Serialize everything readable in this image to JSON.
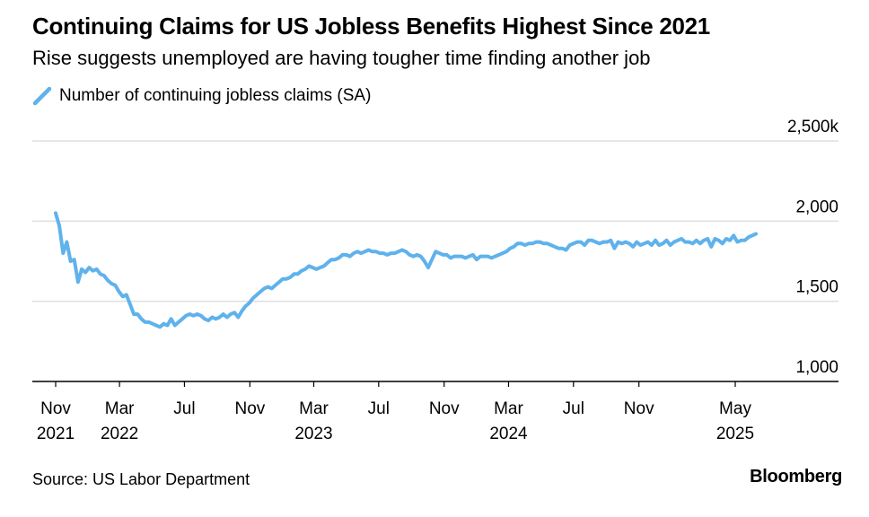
{
  "header": {
    "title": "Continuing Claims for US Jobless Benefits Highest Since 2021",
    "subtitle": "Rise suggests unemployed are having tougher time finding another job"
  },
  "footer": {
    "source": "Source: US Labor Department",
    "brand": "Bloomberg"
  },
  "chart_data": {
    "type": "line",
    "title": "Continuing Claims for US Jobless Benefits Highest Since 2021",
    "subtitle": "Rise suggests unemployed are having tougher time finding another job",
    "xlabel": "",
    "ylabel": "",
    "ylim": [
      1000,
      2500
    ],
    "y_ticks": [
      {
        "value": 1000,
        "label": "1,000"
      },
      {
        "value": 1500,
        "label": "1,500"
      },
      {
        "value": 2000,
        "label": "2,000"
      },
      {
        "value": 2500,
        "label": "2,500k"
      }
    ],
    "x_ticks": [
      {
        "date": "2021-11",
        "label": "Nov",
        "year": "2021"
      },
      {
        "date": "2022-03",
        "label": "Mar",
        "year": "2022"
      },
      {
        "date": "2022-07",
        "label": "Jul",
        "year": ""
      },
      {
        "date": "2022-11",
        "label": "Nov",
        "year": ""
      },
      {
        "date": "2023-03",
        "label": "Mar",
        "year": "2023"
      },
      {
        "date": "2023-07",
        "label": "Jul",
        "year": ""
      },
      {
        "date": "2023-11",
        "label": "Nov",
        "year": ""
      },
      {
        "date": "2024-03",
        "label": "Mar",
        "year": "2024"
      },
      {
        "date": "2024-07",
        "label": "Jul",
        "year": ""
      },
      {
        "date": "2024-11",
        "label": "Nov",
        "year": ""
      },
      {
        "date": "2025-05",
        "label": "May",
        "year": "2025"
      }
    ],
    "grid": true,
    "legend_position": "top-left",
    "color": "#5fb2ec",
    "series": [
      {
        "name": "Number of continuing jobless claims (SA)",
        "values": [
          [
            "2021-11-01",
            2050
          ],
          [
            "2021-11-08",
            1970
          ],
          [
            "2021-11-15",
            1800
          ],
          [
            "2021-11-22",
            1870
          ],
          [
            "2021-11-29",
            1750
          ],
          [
            "2021-12-06",
            1760
          ],
          [
            "2021-12-13",
            1620
          ],
          [
            "2021-12-20",
            1700
          ],
          [
            "2021-12-27",
            1680
          ],
          [
            "2022-01-03",
            1710
          ],
          [
            "2022-01-10",
            1690
          ],
          [
            "2022-01-17",
            1700
          ],
          [
            "2022-01-24",
            1670
          ],
          [
            "2022-01-31",
            1660
          ],
          [
            "2022-02-07",
            1630
          ],
          [
            "2022-02-14",
            1610
          ],
          [
            "2022-02-21",
            1600
          ],
          [
            "2022-02-28",
            1560
          ],
          [
            "2022-03-07",
            1530
          ],
          [
            "2022-03-14",
            1540
          ],
          [
            "2022-03-21",
            1480
          ],
          [
            "2022-03-28",
            1420
          ],
          [
            "2022-04-04",
            1420
          ],
          [
            "2022-04-11",
            1390
          ],
          [
            "2022-04-18",
            1370
          ],
          [
            "2022-04-25",
            1370
          ],
          [
            "2022-05-02",
            1360
          ],
          [
            "2022-05-09",
            1350
          ],
          [
            "2022-05-16",
            1340
          ],
          [
            "2022-05-23",
            1360
          ],
          [
            "2022-05-30",
            1350
          ],
          [
            "2022-06-06",
            1390
          ],
          [
            "2022-06-13",
            1350
          ],
          [
            "2022-06-20",
            1370
          ],
          [
            "2022-06-27",
            1390
          ],
          [
            "2022-07-04",
            1410
          ],
          [
            "2022-07-11",
            1420
          ],
          [
            "2022-07-18",
            1410
          ],
          [
            "2022-07-25",
            1420
          ],
          [
            "2022-08-01",
            1410
          ],
          [
            "2022-08-08",
            1390
          ],
          [
            "2022-08-15",
            1380
          ],
          [
            "2022-08-22",
            1400
          ],
          [
            "2022-08-29",
            1390
          ],
          [
            "2022-09-05",
            1400
          ],
          [
            "2022-09-12",
            1420
          ],
          [
            "2022-09-19",
            1400
          ],
          [
            "2022-09-26",
            1420
          ],
          [
            "2022-10-03",
            1430
          ],
          [
            "2022-10-10",
            1400
          ],
          [
            "2022-10-17",
            1440
          ],
          [
            "2022-10-24",
            1470
          ],
          [
            "2022-10-31",
            1490
          ],
          [
            "2022-11-07",
            1520
          ],
          [
            "2022-11-14",
            1540
          ],
          [
            "2022-11-21",
            1560
          ],
          [
            "2022-11-28",
            1580
          ],
          [
            "2022-12-05",
            1590
          ],
          [
            "2022-12-12",
            1580
          ],
          [
            "2022-12-19",
            1600
          ],
          [
            "2022-12-26",
            1620
          ],
          [
            "2023-01-02",
            1640
          ],
          [
            "2023-01-09",
            1640
          ],
          [
            "2023-01-16",
            1650
          ],
          [
            "2023-01-23",
            1670
          ],
          [
            "2023-01-30",
            1670
          ],
          [
            "2023-02-06",
            1690
          ],
          [
            "2023-02-13",
            1700
          ],
          [
            "2023-02-20",
            1720
          ],
          [
            "2023-02-27",
            1710
          ],
          [
            "2023-03-06",
            1700
          ],
          [
            "2023-03-13",
            1710
          ],
          [
            "2023-03-20",
            1720
          ],
          [
            "2023-03-27",
            1740
          ],
          [
            "2023-04-03",
            1760
          ],
          [
            "2023-04-10",
            1760
          ],
          [
            "2023-04-17",
            1770
          ],
          [
            "2023-04-24",
            1790
          ],
          [
            "2023-05-01",
            1790
          ],
          [
            "2023-05-08",
            1780
          ],
          [
            "2023-05-15",
            1800
          ],
          [
            "2023-05-22",
            1810
          ],
          [
            "2023-05-29",
            1800
          ],
          [
            "2023-06-05",
            1810
          ],
          [
            "2023-06-12",
            1820
          ],
          [
            "2023-06-19",
            1810
          ],
          [
            "2023-06-26",
            1810
          ],
          [
            "2023-07-03",
            1800
          ],
          [
            "2023-07-10",
            1800
          ],
          [
            "2023-07-17",
            1790
          ],
          [
            "2023-07-24",
            1800
          ],
          [
            "2023-07-31",
            1800
          ],
          [
            "2023-08-07",
            1810
          ],
          [
            "2023-08-14",
            1820
          ],
          [
            "2023-08-21",
            1810
          ],
          [
            "2023-08-28",
            1790
          ],
          [
            "2023-09-04",
            1780
          ],
          [
            "2023-09-11",
            1790
          ],
          [
            "2023-09-18",
            1780
          ],
          [
            "2023-09-25",
            1750
          ],
          [
            "2023-10-02",
            1710
          ],
          [
            "2023-10-09",
            1760
          ],
          [
            "2023-10-16",
            1810
          ],
          [
            "2023-10-23",
            1800
          ],
          [
            "2023-10-30",
            1790
          ],
          [
            "2023-11-06",
            1790
          ],
          [
            "2023-11-13",
            1770
          ],
          [
            "2023-11-20",
            1780
          ],
          [
            "2023-11-27",
            1780
          ],
          [
            "2023-12-04",
            1780
          ],
          [
            "2023-12-11",
            1770
          ],
          [
            "2023-12-18",
            1780
          ],
          [
            "2023-12-25",
            1790
          ],
          [
            "2024-01-01",
            1760
          ],
          [
            "2024-01-08",
            1780
          ],
          [
            "2024-01-15",
            1780
          ],
          [
            "2024-01-22",
            1780
          ],
          [
            "2024-01-29",
            1770
          ],
          [
            "2024-02-05",
            1780
          ],
          [
            "2024-02-12",
            1790
          ],
          [
            "2024-02-19",
            1800
          ],
          [
            "2024-02-26",
            1810
          ],
          [
            "2024-03-04",
            1830
          ],
          [
            "2024-03-11",
            1840
          ],
          [
            "2024-03-18",
            1860
          ],
          [
            "2024-03-25",
            1860
          ],
          [
            "2024-04-01",
            1850
          ],
          [
            "2024-04-08",
            1860
          ],
          [
            "2024-04-15",
            1860
          ],
          [
            "2024-04-22",
            1870
          ],
          [
            "2024-04-29",
            1870
          ],
          [
            "2024-05-06",
            1860
          ],
          [
            "2024-05-13",
            1860
          ],
          [
            "2024-05-20",
            1850
          ],
          [
            "2024-05-27",
            1840
          ],
          [
            "2024-06-03",
            1830
          ],
          [
            "2024-06-10",
            1830
          ],
          [
            "2024-06-17",
            1820
          ],
          [
            "2024-06-24",
            1850
          ],
          [
            "2024-07-01",
            1860
          ],
          [
            "2024-07-08",
            1870
          ],
          [
            "2024-07-15",
            1870
          ],
          [
            "2024-07-22",
            1850
          ],
          [
            "2024-07-29",
            1880
          ],
          [
            "2024-08-05",
            1880
          ],
          [
            "2024-08-12",
            1870
          ],
          [
            "2024-08-19",
            1860
          ],
          [
            "2024-08-26",
            1870
          ],
          [
            "2024-09-02",
            1870
          ],
          [
            "2024-09-09",
            1880
          ],
          [
            "2024-09-16",
            1830
          ],
          [
            "2024-09-23",
            1870
          ],
          [
            "2024-09-30",
            1860
          ],
          [
            "2024-10-07",
            1870
          ],
          [
            "2024-10-14",
            1860
          ],
          [
            "2024-10-21",
            1840
          ],
          [
            "2024-10-28",
            1870
          ],
          [
            "2024-11-04",
            1850
          ],
          [
            "2024-11-11",
            1860
          ],
          [
            "2024-11-18",
            1870
          ],
          [
            "2024-11-25",
            1850
          ],
          [
            "2024-12-02",
            1880
          ],
          [
            "2024-12-09",
            1850
          ],
          [
            "2024-12-16",
            1860
          ],
          [
            "2024-12-23",
            1880
          ],
          [
            "2024-12-30",
            1850
          ],
          [
            "2025-01-06",
            1870
          ],
          [
            "2025-01-13",
            1880
          ],
          [
            "2025-01-20",
            1890
          ],
          [
            "2025-01-27",
            1870
          ],
          [
            "2025-02-03",
            1870
          ],
          [
            "2025-02-10",
            1860
          ],
          [
            "2025-02-17",
            1880
          ],
          [
            "2025-02-24",
            1860
          ],
          [
            "2025-03-03",
            1880
          ],
          [
            "2025-03-10",
            1890
          ],
          [
            "2025-03-17",
            1840
          ],
          [
            "2025-03-24",
            1890
          ],
          [
            "2025-03-31",
            1880
          ],
          [
            "2025-04-07",
            1860
          ],
          [
            "2025-04-14",
            1890
          ],
          [
            "2025-04-21",
            1880
          ],
          [
            "2025-04-28",
            1910
          ],
          [
            "2025-05-05",
            1870
          ],
          [
            "2025-05-12",
            1880
          ],
          [
            "2025-05-19",
            1880
          ],
          [
            "2025-05-26",
            1900
          ],
          [
            "2025-06-02",
            1910
          ],
          [
            "2025-06-09",
            1920
          ]
        ]
      }
    ]
  }
}
